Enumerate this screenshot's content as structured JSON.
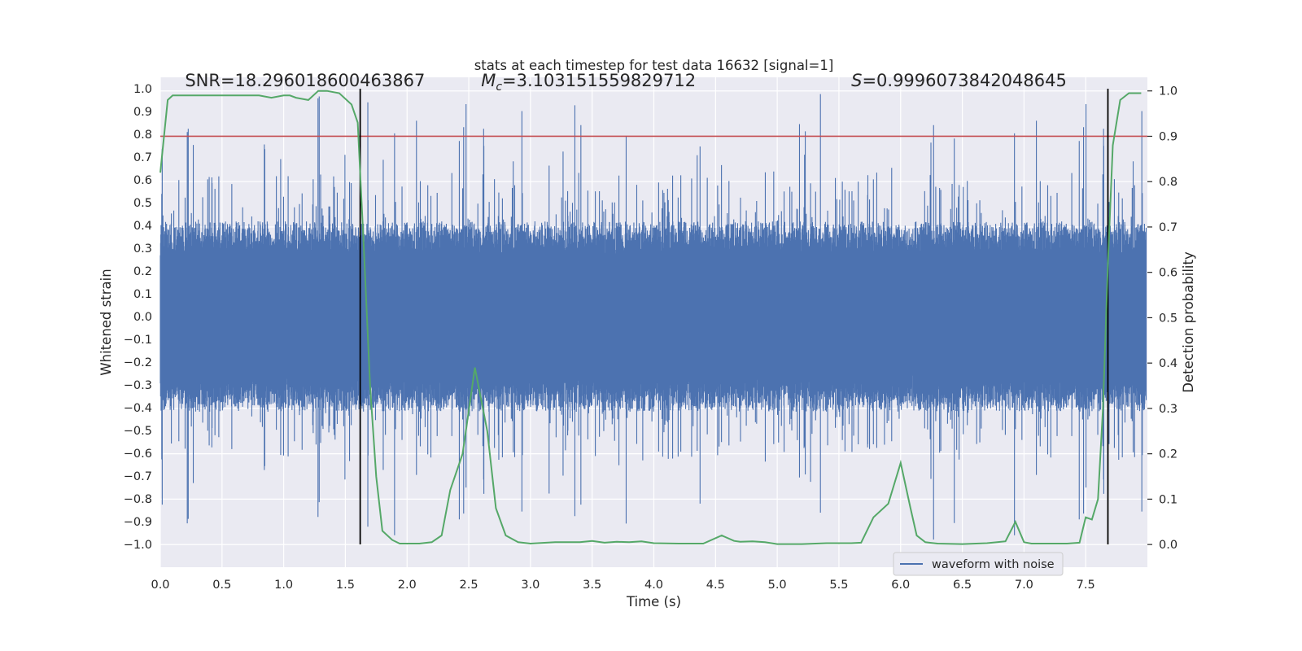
{
  "chart_data": {
    "type": "line",
    "title": "stats at each timestep for test data 16632 [signal=1]",
    "xlabel": "Time (s)",
    "ylabel": "Whitened strain",
    "ylabel_right": "Detection probability",
    "xlim": [
      0.0,
      8.0
    ],
    "ylim": [
      -1.1,
      1.05
    ],
    "ylim_right": [
      -0.05,
      1.03
    ],
    "x_ticks": [
      0.0,
      0.5,
      1.0,
      1.5,
      2.0,
      2.5,
      3.0,
      3.5,
      4.0,
      4.5,
      5.0,
      5.5,
      6.0,
      6.5,
      7.0,
      7.5
    ],
    "x_tick_labels": [
      "0.0",
      "0.5",
      "1.0",
      "1.5",
      "2.0",
      "2.5",
      "3.0",
      "3.5",
      "4.0",
      "4.5",
      "5.0",
      "5.5",
      "6.0",
      "6.5",
      "7.0",
      "7.5"
    ],
    "y_ticks": [
      -1.0,
      -0.9,
      -0.8,
      -0.7,
      -0.6,
      -0.5,
      -0.4,
      -0.3,
      -0.2,
      -0.1,
      0.0,
      0.1,
      0.2,
      0.3,
      0.4,
      0.5,
      0.6,
      0.7,
      0.8,
      0.9,
      1.0
    ],
    "y_tick_labels": [
      "−1.0",
      "−0.9",
      "−0.8",
      "−0.7",
      "−0.6",
      "−0.5",
      "−0.4",
      "−0.3",
      "−0.2",
      "−0.1",
      "0.0",
      "0.1",
      "0.2",
      "0.3",
      "0.4",
      "0.5",
      "0.6",
      "0.7",
      "0.8",
      "0.9",
      "1.0"
    ],
    "y_ticks_right": [
      0.0,
      0.1,
      0.2,
      0.3,
      0.4,
      0.5,
      0.6,
      0.7,
      0.8,
      0.9,
      1.0
    ],
    "y_tick_labels_right": [
      "0.0",
      "0.1",
      "0.2",
      "0.3",
      "0.4",
      "0.5",
      "0.6",
      "0.7",
      "0.8",
      "0.9",
      "1.0"
    ],
    "threshold": {
      "axis": "right",
      "value": 0.9,
      "color": "#c44e52"
    },
    "vertical_lines": [
      {
        "x": 1.62,
        "ymin": -1.0,
        "ymax": 1.0,
        "color": "#000000"
      },
      {
        "x": 7.68,
        "ymin": -1.0,
        "ymax": 1.0,
        "color": "#000000"
      }
    ],
    "annotations": [
      {
        "label": "SNR",
        "value": "=18.296018600463867",
        "x": 0.2,
        "y": 1.01
      },
      {
        "label": "M",
        "sub": "c",
        "value": "=3.103151559829712",
        "x": 2.6,
        "y": 1.01
      },
      {
        "label": "S",
        "value": "=0.9996073842048645",
        "x": 5.6,
        "y": 1.01
      }
    ],
    "series": [
      {
        "name": "waveform with noise",
        "axis": "left",
        "color": "#4c72b0",
        "kind": "noise",
        "sample_count": 4096,
        "envelope": 0.38,
        "peak_range": [
          -0.98,
          0.98
        ]
      },
      {
        "name": "detection probability",
        "axis": "right",
        "color": "#55a868",
        "x": [
          0.0,
          0.06,
          0.1,
          0.2,
          0.4,
          0.6,
          0.8,
          0.9,
          1.0,
          1.05,
          1.1,
          1.2,
          1.28,
          1.35,
          1.45,
          1.55,
          1.6,
          1.65,
          1.7,
          1.75,
          1.8,
          1.88,
          1.94,
          2.0,
          2.1,
          2.2,
          2.28,
          2.35,
          2.45,
          2.55,
          2.65,
          2.72,
          2.8,
          2.9,
          3.0,
          3.2,
          3.4,
          3.5,
          3.6,
          3.7,
          3.8,
          3.9,
          4.0,
          4.2,
          4.4,
          4.55,
          4.65,
          4.7,
          4.8,
          4.9,
          5.0,
          5.2,
          5.4,
          5.6,
          5.68,
          5.78,
          5.9,
          6.0,
          6.08,
          6.13,
          6.2,
          6.3,
          6.5,
          6.7,
          6.85,
          6.93,
          7.0,
          7.06,
          7.2,
          7.35,
          7.45,
          7.5,
          7.55,
          7.6,
          7.64,
          7.68,
          7.72,
          7.78,
          7.85,
          7.95
        ],
        "values": [
          0.82,
          0.98,
          0.99,
          0.99,
          0.99,
          0.99,
          0.99,
          0.985,
          0.99,
          0.99,
          0.985,
          0.98,
          1.0,
          1.0,
          0.995,
          0.97,
          0.93,
          0.65,
          0.35,
          0.15,
          0.03,
          0.01,
          0.002,
          0.002,
          0.002,
          0.005,
          0.02,
          0.12,
          0.2,
          0.39,
          0.25,
          0.08,
          0.02,
          0.005,
          0.002,
          0.005,
          0.005,
          0.008,
          0.004,
          0.006,
          0.005,
          0.007,
          0.003,
          0.002,
          0.002,
          0.02,
          0.008,
          0.006,
          0.007,
          0.005,
          0.001,
          0.001,
          0.003,
          0.003,
          0.004,
          0.06,
          0.09,
          0.18,
          0.08,
          0.02,
          0.005,
          0.002,
          0.001,
          0.003,
          0.007,
          0.05,
          0.005,
          0.002,
          0.002,
          0.002,
          0.004,
          0.06,
          0.055,
          0.1,
          0.3,
          0.62,
          0.88,
          0.98,
          0.995,
          0.995
        ]
      }
    ],
    "legend": {
      "placement": "lower-right",
      "entries": [
        "waveform with noise"
      ]
    }
  },
  "colors": {
    "background": "#ffffff",
    "plot_bg": "#eaeaf2",
    "grid": "#ffffff",
    "text": "#262626"
  }
}
